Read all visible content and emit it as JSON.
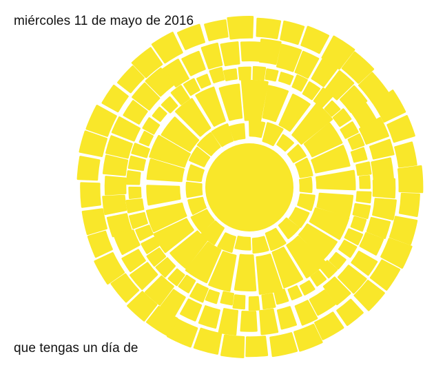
{
  "header": {
    "date_text": "miércoles 11 de mayo de 2016"
  },
  "footer": {
    "message_text": "que tengas un día de"
  },
  "illustration": {
    "name": "mosaic-sun-illustration",
    "fill_color": "#f9e72a",
    "background_color": "#ffffff",
    "text_color": "#111111"
  }
}
